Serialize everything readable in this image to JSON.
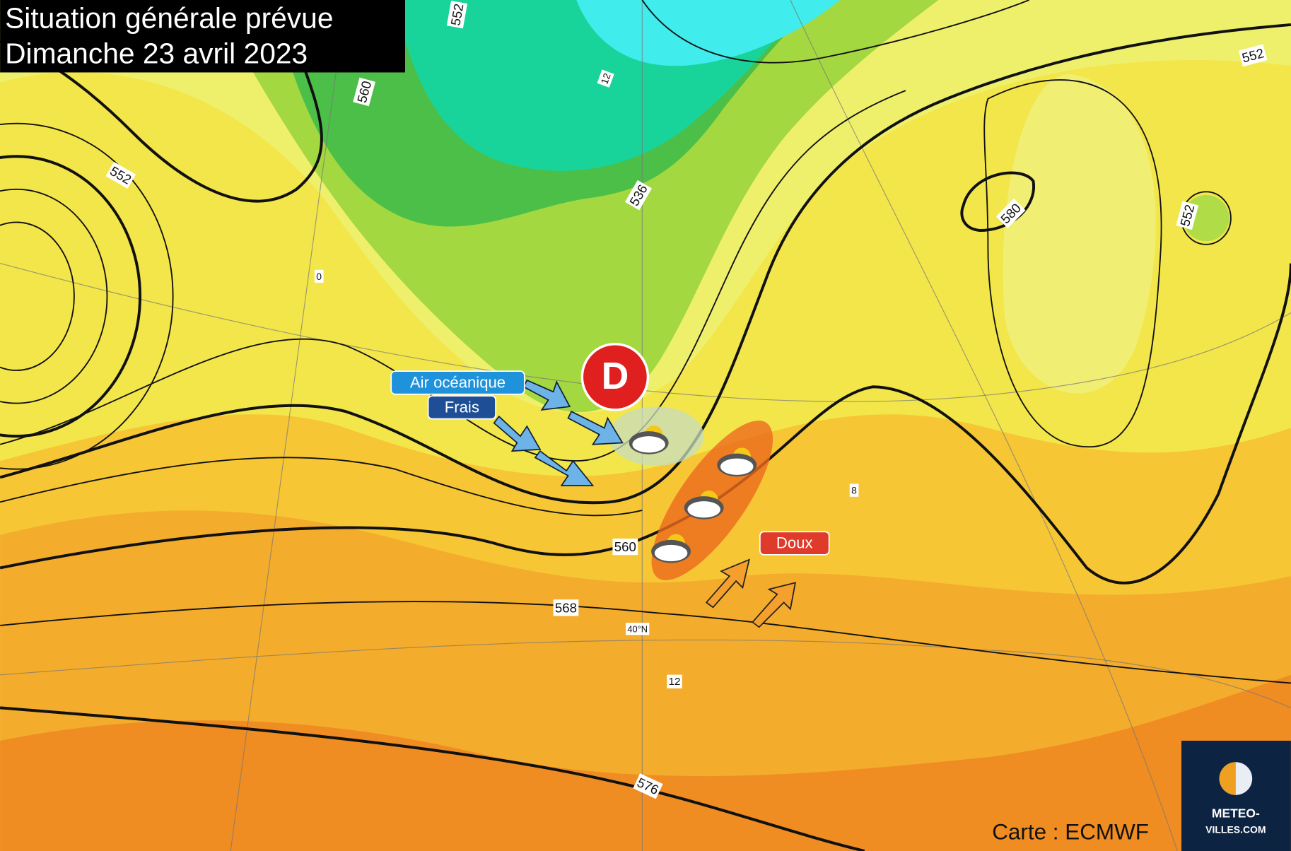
{
  "title": {
    "line1": "Situation générale prévue",
    "line2": "Dimanche 23 avril 2023"
  },
  "contour_labels": [
    "552",
    "560",
    "552",
    "536",
    "552",
    "580",
    "552",
    "560",
    "568",
    "576",
    "40°N",
    "12",
    "12",
    "0",
    "8"
  ],
  "annotations": {
    "low": "D",
    "air": "Air océanique",
    "cold": "Frais",
    "warm": "Doux"
  },
  "credit": "Carte : ECMWF",
  "logo": {
    "line1": "METEO-",
    "line2": "VILLES.COM"
  }
}
